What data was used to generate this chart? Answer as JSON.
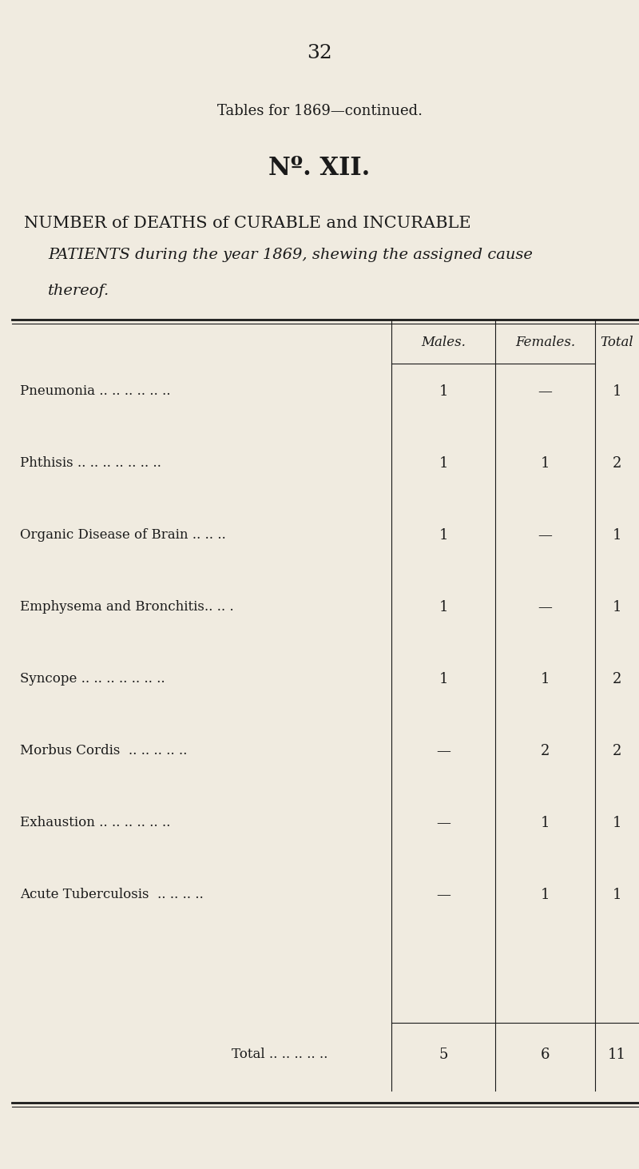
{
  "bg_color": "#F0EBE0",
  "text_color": "#1a1a1a",
  "page_number": "32",
  "subtitle": "Tables for 1869—continued.",
  "table_number": "Nº. XII.",
  "title_line1": "NUMBER of DEATHS of CURABLE and INCURABLE",
  "title_line2": "PATIENTS during the year 1869, shewing the assigned cause",
  "title_line3": "thereof.",
  "col_headers": [
    "Males.",
    "Females.",
    "Total"
  ],
  "rows": [
    {
      "label": "Pneumonia .. .. .. .. .. ..",
      "males": "1",
      "females": "—",
      "total": "1"
    },
    {
      "label": "Phthisis .. .. .. .. .. .. ..",
      "males": "1",
      "females": "1",
      "total": "2"
    },
    {
      "label": "Organic Disease of Brain .. .. ..",
      "males": "1",
      "females": "—",
      "total": "1"
    },
    {
      "label": "Emphysema and Bronchitis.. .. .",
      "males": "1",
      "females": "—",
      "total": "1"
    },
    {
      "label": "Syncope .. .. .. .. .. .. ..",
      "males": "1",
      "females": "1",
      "total": "2"
    },
    {
      "label": "Morbus Cordis  .. .. .. .. ..",
      "males": "—",
      "females": "2",
      "total": "2"
    },
    {
      "label": "Exhaustion .. .. .. .. .. ..",
      "males": "—",
      "females": "1",
      "total": "1"
    },
    {
      "label": "Acute Tuberculosis  .. .. .. ..",
      "males": "—",
      "females": "1",
      "total": "1"
    }
  ],
  "total_row": {
    "label": "Total .. .. .. .. ..",
    "males": "5",
    "females": "6",
    "total": "11"
  },
  "figsize": [
    8.0,
    14.63
  ],
  "dpi": 100
}
